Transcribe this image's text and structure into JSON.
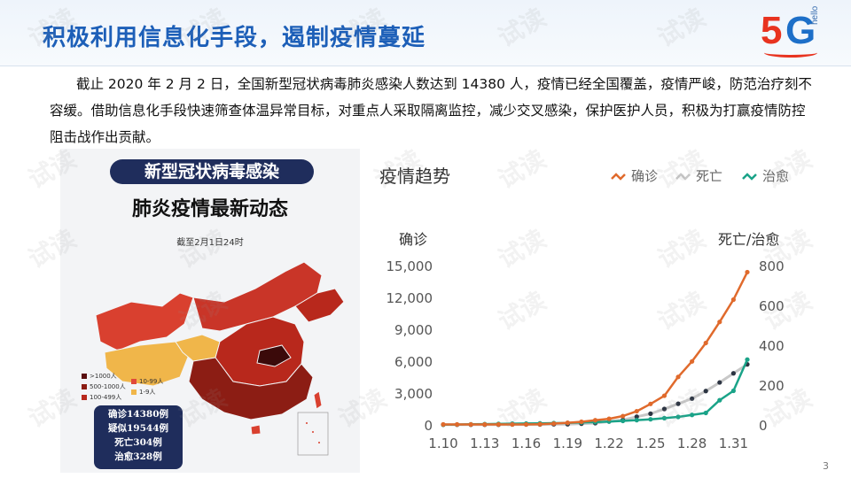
{
  "slide": {
    "title": "积极利用信息化手段，遏制疫情蔓延",
    "logo": {
      "main_five": "5",
      "main_g": "G",
      "sub": "hello"
    },
    "body": "截止 2020 年 2 月 2 日，全国新型冠状病毒肺炎感染人数达到 14380 人，疫情已经全国覆盖，疫情严峻，防范治疗刻不容缓。借助信息化手段快速筛查体温异常目标，对重点人采取隔离监控，减少交叉感染，保护医护人员，积极为打赢疫情防控阻击战作出贡献。",
    "page_number": "3",
    "watermark": "试读"
  },
  "map_panel": {
    "header1": "新型冠状病毒感染",
    "header2": "肺炎疫情最新动态",
    "date_note": "截至2月1日24时",
    "legend": [
      {
        "label": ">1000人",
        "color": "#5a0f0f"
      },
      {
        "label": "10-99人",
        "color": "#e0493a"
      },
      {
        "label": "500-1000人",
        "color": "#8c1d14"
      },
      {
        "label": "1-9人",
        "color": "#f0b64a"
      },
      {
        "label": "100-499人",
        "color": "#b8281c"
      }
    ],
    "stats": [
      "确诊14380例",
      "疑似19544例",
      "死亡304例",
      "治愈328例"
    ]
  },
  "chart_data": {
    "type": "line",
    "title": "疫情趋势",
    "xlabel": "",
    "ylabel_left": "确诊",
    "ylabel_right": "死亡/治愈",
    "x": [
      "1.10",
      "1.11",
      "1.12",
      "1.13",
      "1.14",
      "1.15",
      "1.16",
      "1.17",
      "1.18",
      "1.19",
      "1.20",
      "1.21",
      "1.22",
      "1.23",
      "1.24",
      "1.25",
      "1.26",
      "1.27",
      "1.28",
      "1.29",
      "1.30",
      "1.31",
      "2.1"
    ],
    "x_ticks": [
      "1.10",
      "1.13",
      "1.16",
      "1.19",
      "1.22",
      "1.25",
      "1.28",
      "1.31"
    ],
    "ylim_left": [
      0,
      15000
    ],
    "yticks_left": [
      "0",
      "3,000",
      "6,000",
      "9,000",
      "12,000",
      "15,000"
    ],
    "ylim_right": [
      0,
      800
    ],
    "yticks_right": [
      "0",
      "200",
      "400",
      "600",
      "800"
    ],
    "legend_position": "top-right",
    "series": [
      {
        "name": "确诊",
        "axis": "left",
        "color": "#e06a2c",
        "values": [
          41,
          41,
          41,
          41,
          41,
          41,
          45,
          62,
          121,
          198,
          291,
          440,
          571,
          830,
          1287,
          1975,
          2744,
          4515,
          5974,
          7711,
          9692,
          11791,
          14380
        ]
      },
      {
        "name": "死亡",
        "axis": "right",
        "color": "#c8c8c8",
        "values": [
          1,
          1,
          1,
          1,
          1,
          2,
          2,
          2,
          3,
          3,
          6,
          9,
          17,
          25,
          41,
          56,
          80,
          106,
          132,
          170,
          213,
          259,
          304
        ]
      },
      {
        "name": "治愈",
        "axis": "right",
        "color": "#1aa388",
        "values": [
          1,
          2,
          3,
          4,
          5,
          6,
          7,
          8,
          9,
          10,
          12,
          14,
          17,
          20,
          24,
          28,
          34,
          40,
          50,
          60,
          124,
          171,
          328
        ]
      }
    ]
  }
}
